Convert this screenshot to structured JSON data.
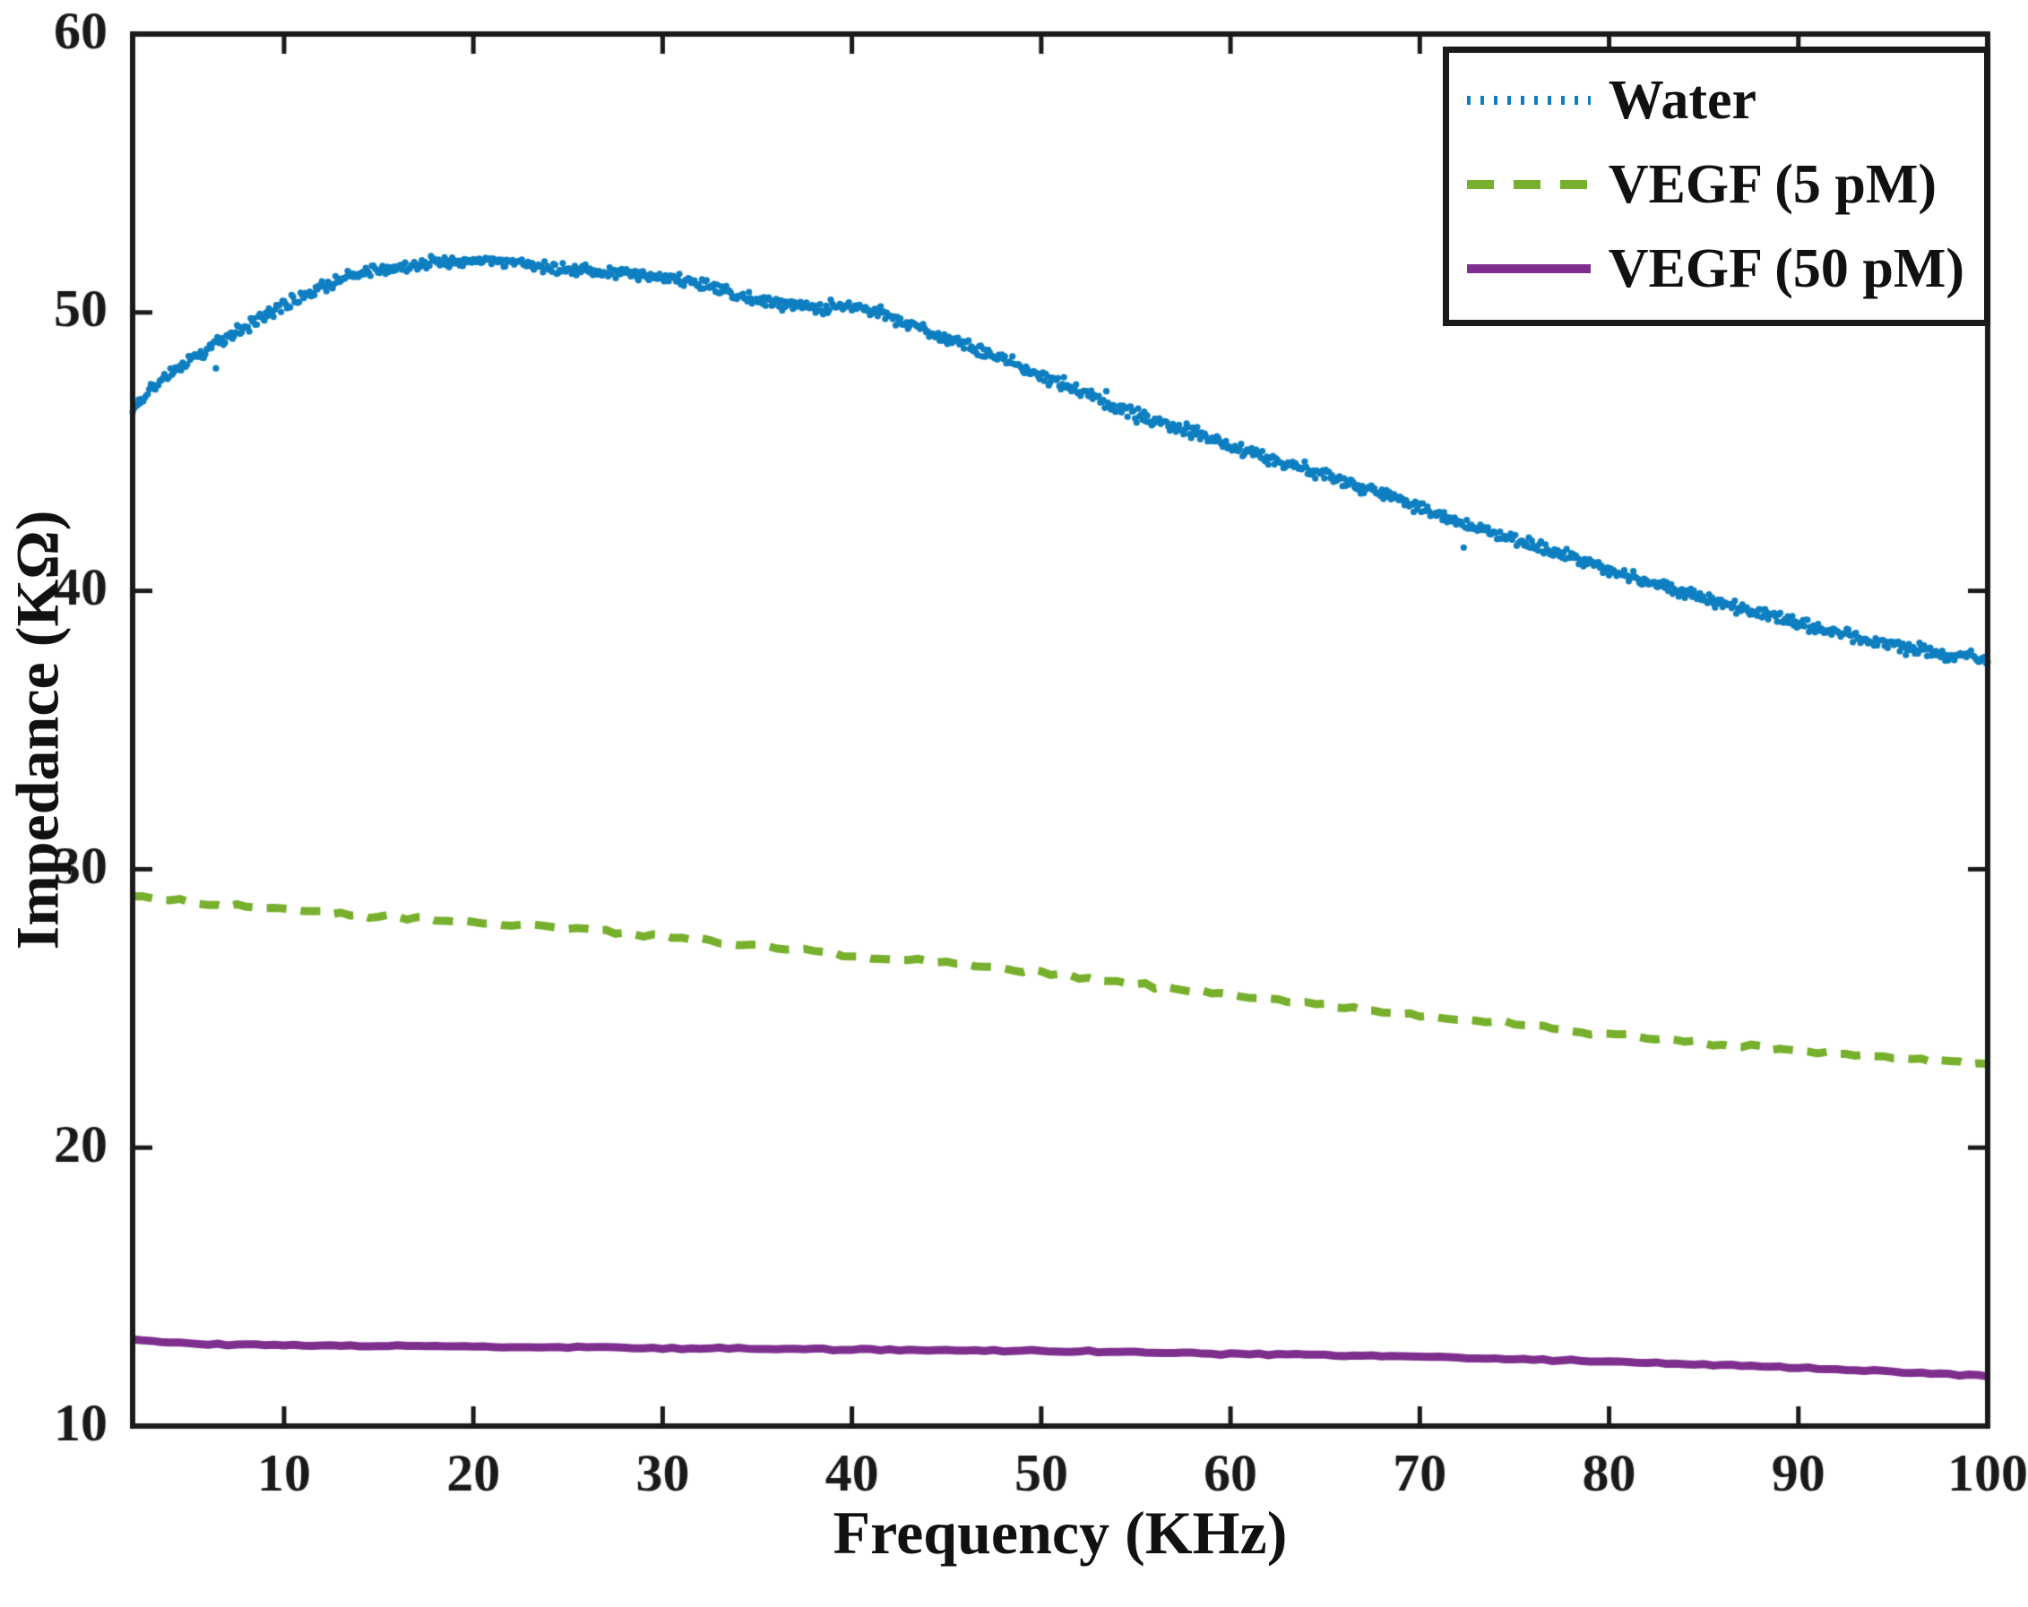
{
  "chart_data": {
    "type": "line",
    "title": "",
    "xlabel": "Frequency (KHz)",
    "ylabel": "Impedance (KΩ)",
    "xlim": [
      2,
      100
    ],
    "ylim": [
      10,
      60
    ],
    "xticks": [
      10,
      20,
      30,
      40,
      50,
      60,
      70,
      80,
      90,
      100
    ],
    "yticks": [
      10,
      20,
      30,
      40,
      50,
      60
    ],
    "grid": false,
    "legend_position": "top-right",
    "axis_color": "#1a1a1a",
    "series": [
      {
        "name": "Water",
        "color": "#0e7fc1",
        "style": "dotted",
        "noise": 0.2,
        "points": [
          [
            2,
            46.5
          ],
          [
            3,
            47.3
          ],
          [
            4,
            47.9
          ],
          [
            5,
            48.3
          ],
          [
            6,
            48.7
          ],
          [
            7,
            49.1
          ],
          [
            8,
            49.5
          ],
          [
            9,
            49.9
          ],
          [
            10,
            50.3
          ],
          [
            11,
            50.6
          ],
          [
            12,
            50.9
          ],
          [
            13,
            51.2
          ],
          [
            14,
            51.4
          ],
          [
            15,
            51.5
          ],
          [
            16,
            51.6
          ],
          [
            17,
            51.7
          ],
          [
            18,
            51.8
          ],
          [
            19,
            51.85
          ],
          [
            20,
            51.9
          ],
          [
            21,
            51.85
          ],
          [
            22,
            51.8
          ],
          [
            23,
            51.7
          ],
          [
            24,
            51.6
          ],
          [
            25,
            51.55
          ],
          [
            26,
            51.5
          ],
          [
            27,
            51.45
          ],
          [
            28,
            51.4
          ],
          [
            29,
            51.35
          ],
          [
            30,
            51.3
          ],
          [
            32,
            51.0
          ],
          [
            34,
            50.6
          ],
          [
            36,
            50.3
          ],
          [
            38,
            50.15
          ],
          [
            40,
            50.25
          ],
          [
            42,
            49.9
          ],
          [
            44,
            49.3
          ],
          [
            46,
            48.8
          ],
          [
            48,
            48.3
          ],
          [
            50,
            47.7
          ],
          [
            52,
            47.2
          ],
          [
            54,
            46.6
          ],
          [
            56,
            46.1
          ],
          [
            58,
            45.7
          ],
          [
            60,
            45.2
          ],
          [
            62,
            44.8
          ],
          [
            64,
            44.4
          ],
          [
            66,
            43.9
          ],
          [
            68,
            43.5
          ],
          [
            70,
            43.0
          ],
          [
            72,
            42.5
          ],
          [
            74,
            42.05
          ],
          [
            76,
            41.6
          ],
          [
            78,
            41.2
          ],
          [
            80,
            40.75
          ],
          [
            82,
            40.35
          ],
          [
            84,
            39.95
          ],
          [
            86,
            39.55
          ],
          [
            88,
            39.2
          ],
          [
            90,
            38.85
          ],
          [
            92,
            38.5
          ],
          [
            94,
            38.15
          ],
          [
            96,
            37.9
          ],
          [
            98,
            37.7
          ],
          [
            100,
            37.5
          ]
        ]
      },
      {
        "name": "VEGF (5 pM)",
        "color": "#77b02c",
        "style": "dashed",
        "noise": 0.07,
        "points": [
          [
            2,
            29.0
          ],
          [
            6,
            28.75
          ],
          [
            10,
            28.55
          ],
          [
            14,
            28.35
          ],
          [
            18,
            28.2
          ],
          [
            22,
            28.0
          ],
          [
            26,
            27.85
          ],
          [
            30,
            27.6
          ],
          [
            34,
            27.3
          ],
          [
            38,
            27.05
          ],
          [
            42,
            26.8
          ],
          [
            46,
            26.6
          ],
          [
            50,
            26.3
          ],
          [
            54,
            25.95
          ],
          [
            58,
            25.65
          ],
          [
            62,
            25.35
          ],
          [
            66,
            25.05
          ],
          [
            70,
            24.75
          ],
          [
            74,
            24.5
          ],
          [
            78,
            24.2
          ],
          [
            82,
            23.95
          ],
          [
            86,
            23.7
          ],
          [
            90,
            23.5
          ],
          [
            94,
            23.3
          ],
          [
            98,
            23.1
          ],
          [
            100,
            23.0
          ]
        ]
      },
      {
        "name": "VEGF (50 pM)",
        "color": "#7e2f8e",
        "style": "solid",
        "noise": 0.03,
        "points": [
          [
            2,
            13.1
          ],
          [
            5,
            12.95
          ],
          [
            10,
            12.9
          ],
          [
            20,
            12.85
          ],
          [
            30,
            12.8
          ],
          [
            40,
            12.75
          ],
          [
            50,
            12.7
          ],
          [
            60,
            12.6
          ],
          [
            70,
            12.5
          ],
          [
            80,
            12.32
          ],
          [
            90,
            12.1
          ],
          [
            95,
            11.95
          ],
          [
            100,
            11.8
          ]
        ]
      }
    ]
  }
}
